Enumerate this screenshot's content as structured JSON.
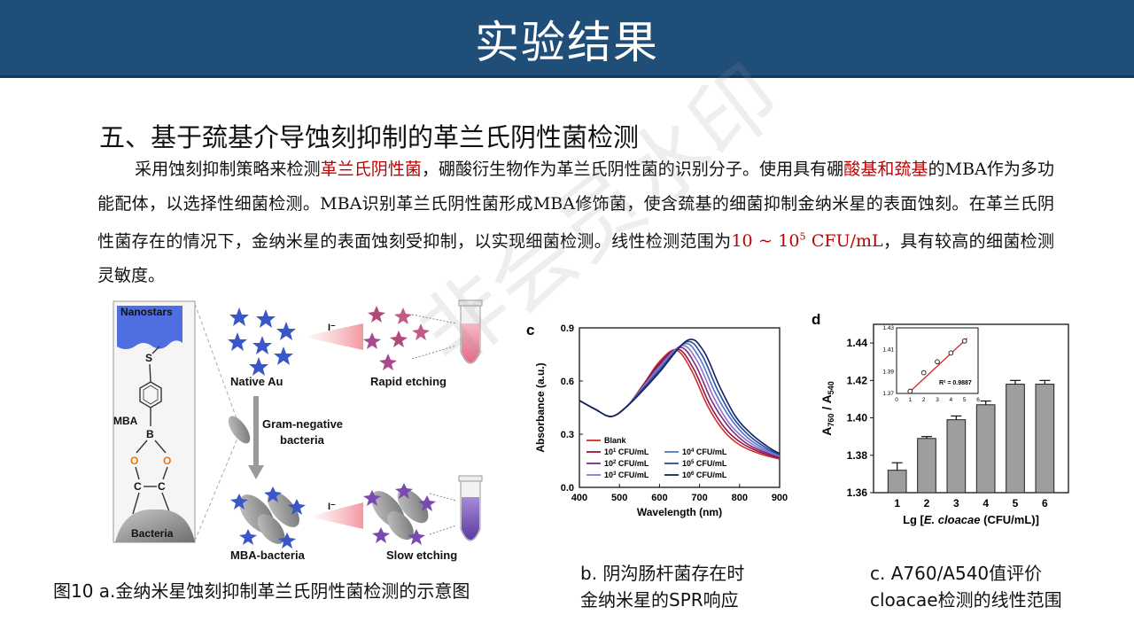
{
  "header": {
    "title": "实验结果"
  },
  "section": {
    "title": "五、基于巯基介导蚀刻抑制的革兰氏阴性菌检测",
    "paragraph": {
      "p1": "采用蚀刻抑制策略来检测",
      "red1": "革兰氏阴性菌",
      "p2": "，硼酸衍生物作为革兰氏阴性菌的识别分子。使用具有硼",
      "red2": "酸基和巯基",
      "p3": "的MBA作为多功能配体，以选择性细菌检测。MBA识别革兰氏阴性菌形成MBA修饰菌，使含巯基的细菌抑制金纳米星的表面蚀刻。在革兰氏阴性菌存在的情况下，金纳米星的表面蚀刻受抑制，以实现细菌检测。线性检测范围为",
      "red3a": "10 ~ 10",
      "red3sup": "5",
      "red3b": " CFU/mL",
      "p4": "，具有较高的细菌检测灵敏度。"
    }
  },
  "watermark": "非会员水印",
  "figure_a": {
    "nanostars": "Nanostars",
    "s_atom": "S",
    "mba": "MBA",
    "b_atom": "B",
    "o_atom": "O",
    "c_atom": "C",
    "bacteria": "Bacteria",
    "native_au": "Native Au",
    "iodide": "I⁻",
    "rapid_etching": "Rapid etching",
    "gram_negative_1": "Gram-negative",
    "gram_negative_2": "bacteria",
    "mba_bacteria": "MBA-bacteria",
    "slow_etching": "Slow etching",
    "caption": "图10 a.金纳米星蚀刻抑制革兰氏阴性菌检测的示意图"
  },
  "chart_data": [
    {
      "type": "line",
      "panel": "c",
      "xlabel": "Wavelength (nm)",
      "ylabel": "Absorbance (a.u.)",
      "xlim": [
        400,
        900
      ],
      "ylim": [
        0.0,
        0.9
      ],
      "xticks": [
        400,
        500,
        600,
        700,
        800,
        900
      ],
      "yticks": [
        0.0,
        0.3,
        0.6,
        0.9
      ],
      "legend": "bottom-left",
      "series": [
        {
          "name": "Blank",
          "label_base": "Blank",
          "label_sup": "",
          "label_unit": "",
          "color": "#d62a2a",
          "peak_x": 642,
          "peak_y": 0.775,
          "points": [
            [
              400,
              0.49
            ],
            [
              440,
              0.44
            ],
            [
              480,
              0.4
            ],
            [
              520,
              0.46
            ],
            [
              560,
              0.58
            ],
            [
              600,
              0.71
            ],
            [
              642,
              0.775
            ],
            [
              680,
              0.66
            ],
            [
              720,
              0.46
            ],
            [
              760,
              0.32
            ],
            [
              800,
              0.24
            ],
            [
              850,
              0.19
            ],
            [
              900,
              0.16
            ]
          ]
        },
        {
          "name": "10^1 CFU/mL",
          "label_base": "10",
          "label_sup": "1",
          "label_unit": " CFU/mL",
          "color": "#8b1a3a",
          "peak_x": 646,
          "peak_y": 0.78,
          "points": [
            [
              400,
              0.49
            ],
            [
              440,
              0.44
            ],
            [
              480,
              0.4
            ],
            [
              520,
              0.46
            ],
            [
              560,
              0.58
            ],
            [
              600,
              0.7
            ],
            [
              646,
              0.78
            ],
            [
              685,
              0.67
            ],
            [
              725,
              0.47
            ],
            [
              765,
              0.33
            ],
            [
              805,
              0.25
            ],
            [
              850,
              0.2
            ],
            [
              900,
              0.165
            ]
          ]
        },
        {
          "name": "10^2 CFU/mL",
          "label_base": "10",
          "label_sup": "2",
          "label_unit": " CFU/mL",
          "color": "#7a2a8a",
          "peak_x": 652,
          "peak_y": 0.79,
          "points": [
            [
              400,
              0.49
            ],
            [
              440,
              0.44
            ],
            [
              480,
              0.4
            ],
            [
              520,
              0.46
            ],
            [
              560,
              0.57
            ],
            [
              600,
              0.69
            ],
            [
              652,
              0.79
            ],
            [
              690,
              0.69
            ],
            [
              730,
              0.49
            ],
            [
              770,
              0.35
            ],
            [
              810,
              0.26
            ],
            [
              850,
              0.21
            ],
            [
              900,
              0.17
            ]
          ]
        },
        {
          "name": "10^3 CFU/mL",
          "label_base": "10",
          "label_sup": "3",
          "label_unit": " CFU/mL",
          "color": "#9b6fc8",
          "peak_x": 656,
          "peak_y": 0.8,
          "points": [
            [
              400,
              0.49
            ],
            [
              440,
              0.44
            ],
            [
              480,
              0.4
            ],
            [
              520,
              0.46
            ],
            [
              560,
              0.57
            ],
            [
              600,
              0.68
            ],
            [
              656,
              0.8
            ],
            [
              695,
              0.71
            ],
            [
              735,
              0.51
            ],
            [
              775,
              0.36
            ],
            [
              815,
              0.27
            ],
            [
              855,
              0.215
            ],
            [
              900,
              0.175
            ]
          ]
        },
        {
          "name": "10^4 CFU/mL",
          "label_base": "10",
          "label_sup": "4",
          "label_unit": " CFU/mL",
          "color": "#4a78c8",
          "peak_x": 662,
          "peak_y": 0.81,
          "points": [
            [
              400,
              0.49
            ],
            [
              440,
              0.44
            ],
            [
              480,
              0.4
            ],
            [
              520,
              0.46
            ],
            [
              560,
              0.56
            ],
            [
              600,
              0.67
            ],
            [
              662,
              0.81
            ],
            [
              700,
              0.73
            ],
            [
              740,
              0.53
            ],
            [
              780,
              0.38
            ],
            [
              820,
              0.28
            ],
            [
              860,
              0.22
            ],
            [
              900,
              0.18
            ]
          ]
        },
        {
          "name": "10^5 CFU/mL",
          "label_base": "10",
          "label_sup": "5",
          "label_unit": " CFU/mL",
          "color": "#2a4a9a",
          "peak_x": 666,
          "peak_y": 0.82,
          "points": [
            [
              400,
              0.49
            ],
            [
              440,
              0.44
            ],
            [
              480,
              0.4
            ],
            [
              520,
              0.46
            ],
            [
              560,
              0.56
            ],
            [
              600,
              0.66
            ],
            [
              666,
              0.82
            ],
            [
              705,
              0.75
            ],
            [
              745,
              0.55
            ],
            [
              785,
              0.39
            ],
            [
              825,
              0.29
            ],
            [
              865,
              0.225
            ],
            [
              900,
              0.185
            ]
          ]
        },
        {
          "name": "10^6 CFU/mL",
          "label_base": "10",
          "label_sup": "6",
          "label_unit": " CFU/mL",
          "color": "#13235e",
          "peak_x": 670,
          "peak_y": 0.83,
          "points": [
            [
              400,
              0.49
            ],
            [
              440,
              0.44
            ],
            [
              480,
              0.4
            ],
            [
              520,
              0.46
            ],
            [
              560,
              0.55
            ],
            [
              600,
              0.65
            ],
            [
              670,
              0.83
            ],
            [
              710,
              0.77
            ],
            [
              750,
              0.57
            ],
            [
              790,
              0.4
            ],
            [
              830,
              0.3
            ],
            [
              870,
              0.23
            ],
            [
              900,
              0.19
            ]
          ]
        }
      ],
      "caption_1": "b.  阴沟肠杆菌存在时",
      "caption_2": "金纳米星的SPR响应"
    },
    {
      "type": "bar",
      "panel": "d",
      "xlabel_pre": "Lg [",
      "xlabel_italic": "E. cloacae",
      "xlabel_post": " (CFU/mL)]",
      "ylabel_a": "A",
      "ylabel_sub1": "760",
      "ylabel_mid": " / A",
      "ylabel_sub2": "540",
      "categories": [
        "1",
        "2",
        "3",
        "4",
        "5",
        "6"
      ],
      "values": [
        1.372,
        1.389,
        1.399,
        1.407,
        1.418,
        1.418
      ],
      "errors": [
        0.004,
        0.001,
        0.002,
        0.002,
        0.002,
        0.002
      ],
      "ylim": [
        1.36,
        1.45
      ],
      "yticks": [
        1.36,
        1.38,
        1.4,
        1.42,
        1.44
      ],
      "bar_color": "#9e9e9e",
      "inset": {
        "type": "scatter",
        "x": [
          1,
          2,
          3,
          4,
          5
        ],
        "y": [
          1.372,
          1.389,
          1.399,
          1.407,
          1.418
        ],
        "xlim": [
          0,
          6
        ],
        "ylim": [
          1.37,
          1.43
        ],
        "xticks": [
          0,
          1,
          2,
          3,
          4,
          5,
          6
        ],
        "yticks": [
          1.37,
          1.39,
          1.41,
          1.43
        ],
        "fit_color": "#d62a2a",
        "r2_label": "R² = 0.9887"
      },
      "caption_1": "c. A760/A540值评价",
      "caption_2": "cloacae检测的线性范围"
    }
  ]
}
